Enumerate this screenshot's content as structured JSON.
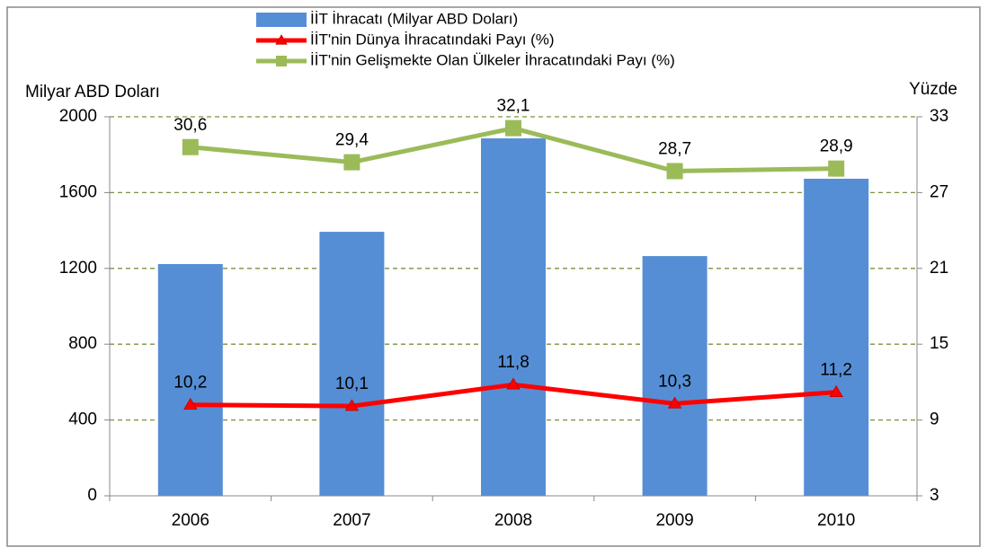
{
  "chart_data": {
    "type": "bar",
    "categories": [
      "2006",
      "2007",
      "2008",
      "2009",
      "2010"
    ],
    "ylabel": "Milyar ABD Doları",
    "y2label": "Yüzde",
    "ylim": [
      0,
      2000
    ],
    "yticks": [
      0,
      400,
      800,
      1200,
      1600,
      2000
    ],
    "y2lim": [
      3,
      33
    ],
    "y2ticks": [
      3,
      9,
      15,
      21,
      27,
      33
    ],
    "grid": true,
    "legend": "top",
    "series": [
      {
        "name": "İİT İhracatı (Milyar ABD Doları)",
        "type": "bar",
        "color": "#558ed5",
        "values": [
          1223,
          1393,
          1886,
          1265,
          1673
        ]
      },
      {
        "name": "İİT'nin Dünya İhracatındaki Payı (%)",
        "type": "line",
        "marker": "triangle",
        "axis": "y2",
        "color": "#ff0000",
        "values": [
          10.2,
          10.1,
          11.8,
          10.3,
          11.2
        ],
        "value_labels": [
          "10,2",
          "10,1",
          "11,8",
          "10,3",
          "11,2"
        ]
      },
      {
        "name": "İİT'nin Gelişmekte Olan Ülkeler İhracatındaki Payı (%)",
        "type": "line",
        "marker": "square",
        "axis": "y2",
        "color": "#9bbb59",
        "values": [
          30.6,
          29.4,
          32.1,
          28.7,
          28.9
        ],
        "value_labels": [
          "30,6",
          "29,4",
          "32,1",
          "28,7",
          "28,9"
        ]
      }
    ]
  }
}
